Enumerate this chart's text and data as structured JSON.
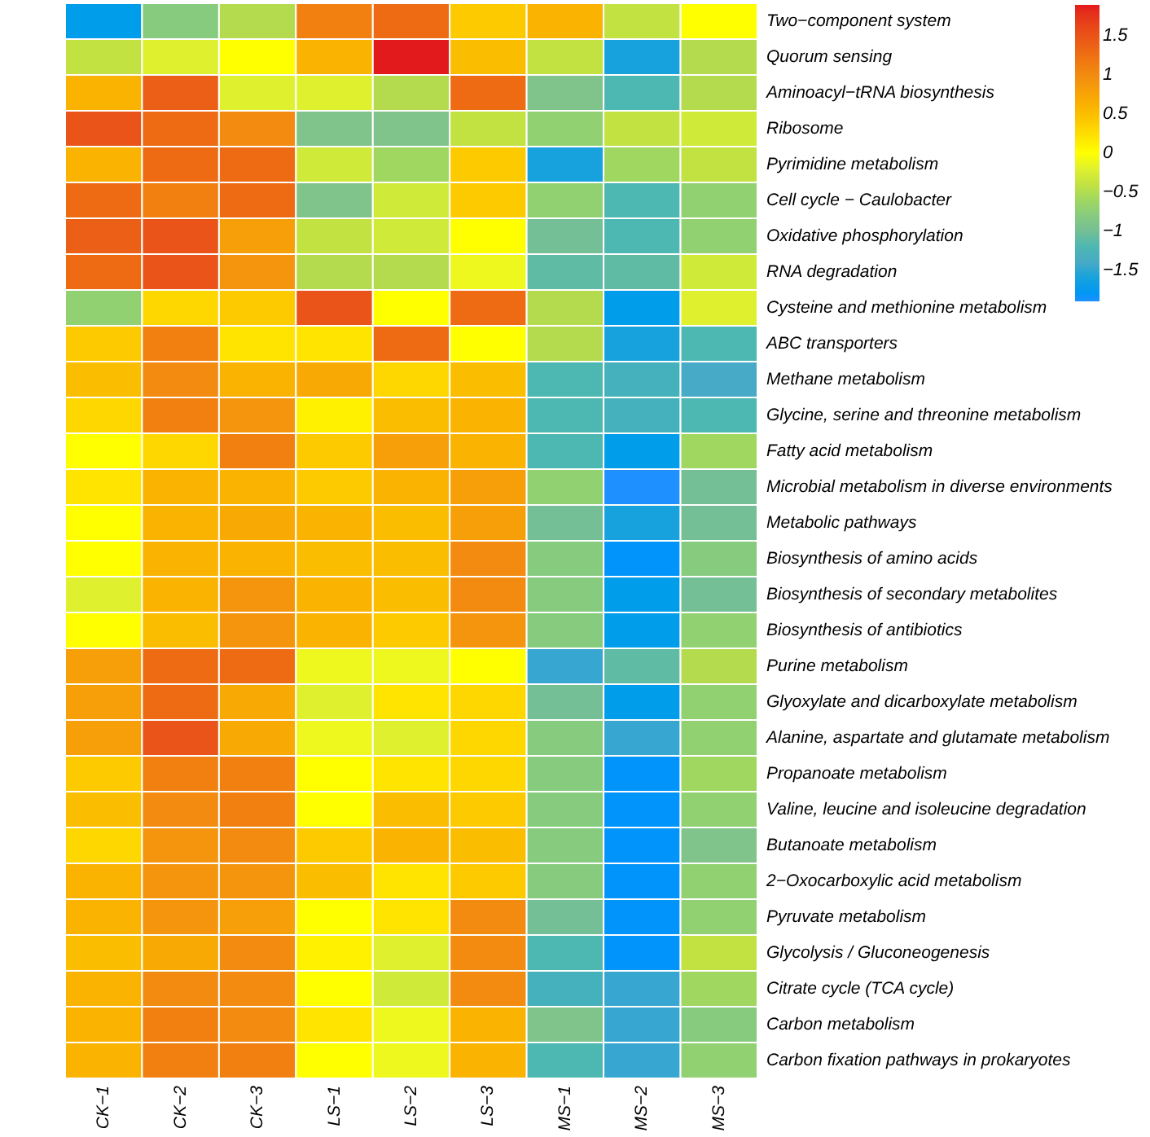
{
  "chart_data": {
    "type": "heatmap",
    "categories": [
      "CK−1",
      "CK−2",
      "CK−3",
      "LS−1",
      "LS−2",
      "LS−3",
      "MS−1",
      "MS−2",
      "MS−3"
    ],
    "y_categories": [
      "Two−component system",
      "Quorum sensing",
      "Aminoacyl−tRNA biosynthesis",
      "Ribosome",
      "Pyrimidine metabolism",
      "Cell cycle − Caulobacter",
      "Oxidative phosphorylation",
      "RNA degradation",
      "Cysteine and methionine metabolism",
      "ABC transporters",
      "Methane metabolism",
      "Glycine, serine and threonine metabolism",
      "Fatty acid metabolism",
      "Microbial metabolism in diverse environments",
      "Metabolic pathways",
      "Biosynthesis of amino acids",
      "Biosynthesis of secondary metabolites",
      "Biosynthesis of antibiotics",
      "Purine metabolism",
      "Glyoxylate and dicarboxylate metabolism",
      "Alanine, aspartate and glutamate metabolism",
      "Propanoate metabolism",
      "Valine, leucine and isoleucine degradation",
      "Butanoate metabolism",
      "2−Oxocarboxylic acid metabolism",
      "Pyruvate metabolism",
      "Glycolysis / Gluconeogenesis",
      "Citrate cycle (TCA cycle)",
      "Carbon metabolism",
      "Carbon fixation pathways in prokaryotes"
    ],
    "cells": [
      [
        -1.7,
        -0.8,
        -0.5,
        1.1,
        1.3,
        0.4,
        0.6,
        -0.4,
        0.0
      ],
      [
        -0.4,
        -0.2,
        0.0,
        0.6,
        1.9,
        0.5,
        -0.4,
        -1.6,
        -0.5
      ],
      [
        0.6,
        1.4,
        -0.2,
        -0.2,
        -0.5,
        1.3,
        -0.9,
        -1.2,
        -0.5
      ],
      [
        1.5,
        1.3,
        1.0,
        -0.9,
        -0.9,
        -0.4,
        -0.7,
        -0.4,
        -0.3
      ],
      [
        0.6,
        1.3,
        1.3,
        -0.3,
        -0.6,
        0.4,
        -1.6,
        -0.6,
        -0.4
      ],
      [
        1.3,
        1.1,
        1.3,
        -0.9,
        -0.3,
        0.4,
        -0.7,
        -1.2,
        -0.7
      ],
      [
        1.4,
        1.5,
        0.8,
        -0.4,
        -0.3,
        0.0,
        -1.0,
        -1.2,
        -0.7
      ],
      [
        1.3,
        1.5,
        0.9,
        -0.5,
        -0.5,
        -0.1,
        -1.1,
        -1.1,
        -0.3
      ],
      [
        -0.7,
        0.3,
        0.4,
        1.5,
        0.0,
        1.3,
        -0.5,
        -1.7,
        -0.2
      ],
      [
        0.4,
        1.1,
        0.2,
        0.2,
        1.3,
        0.0,
        -0.5,
        -1.6,
        -1.2
      ],
      [
        0.5,
        1.0,
        0.6,
        0.7,
        0.3,
        0.5,
        -1.2,
        -1.3,
        -1.4
      ],
      [
        0.3,
        1.1,
        0.9,
        0.1,
        0.5,
        0.6,
        -1.2,
        -1.3,
        -1.2
      ],
      [
        0.0,
        0.3,
        1.1,
        0.4,
        0.8,
        0.6,
        -1.2,
        -1.7,
        -0.6
      ],
      [
        0.2,
        0.6,
        0.6,
        0.4,
        0.6,
        0.8,
        -0.7,
        -1.9,
        -1.0
      ],
      [
        0.0,
        0.6,
        0.7,
        0.6,
        0.5,
        0.8,
        -1.0,
        -1.6,
        -1.0
      ],
      [
        0.0,
        0.6,
        0.6,
        0.5,
        0.5,
        1.0,
        -0.8,
        -1.85,
        -0.8
      ],
      [
        -0.2,
        0.6,
        0.9,
        0.6,
        0.5,
        1.0,
        -0.8,
        -1.7,
        -1.0
      ],
      [
        0.0,
        0.5,
        0.9,
        0.6,
        0.4,
        0.9,
        -0.8,
        -1.7,
        -0.7
      ],
      [
        0.8,
        1.3,
        1.3,
        -0.1,
        -0.1,
        0.0,
        -1.5,
        -1.1,
        -0.5
      ],
      [
        0.8,
        1.3,
        0.7,
        -0.2,
        0.2,
        0.3,
        -1.0,
        -1.7,
        -0.7
      ],
      [
        0.8,
        1.5,
        0.7,
        -0.1,
        -0.2,
        0.3,
        -0.8,
        -1.5,
        -0.7
      ],
      [
        0.4,
        1.1,
        1.1,
        0.0,
        0.2,
        0.3,
        -0.8,
        -1.85,
        -0.6
      ],
      [
        0.5,
        1.0,
        1.1,
        0.0,
        0.5,
        0.4,
        -0.8,
        -1.85,
        -0.7
      ],
      [
        0.3,
        0.9,
        1.0,
        0.4,
        0.6,
        0.5,
        -0.8,
        -1.85,
        -0.9
      ],
      [
        0.6,
        0.9,
        0.9,
        0.5,
        0.2,
        0.4,
        -0.8,
        -1.85,
        -0.7
      ],
      [
        0.6,
        0.9,
        0.8,
        0.0,
        0.2,
        1.0,
        -1.0,
        -1.85,
        -0.7
      ],
      [
        0.5,
        0.7,
        1.0,
        0.1,
        -0.2,
        1.0,
        -1.2,
        -1.85,
        -0.4
      ],
      [
        0.6,
        1.0,
        1.0,
        0.0,
        -0.3,
        1.0,
        -1.3,
        -1.5,
        -0.6
      ],
      [
        0.6,
        1.1,
        1.0,
        0.2,
        -0.1,
        0.6,
        -0.9,
        -1.5,
        -0.8
      ],
      [
        0.6,
        1.1,
        1.1,
        0.0,
        -0.1,
        0.6,
        -1.2,
        -1.5,
        -0.7
      ]
    ],
    "clim": [
      -1.9,
      1.9
    ],
    "cticks": [
      -1.5,
      -1,
      -0.5,
      0,
      0.5,
      1,
      1.5
    ]
  }
}
